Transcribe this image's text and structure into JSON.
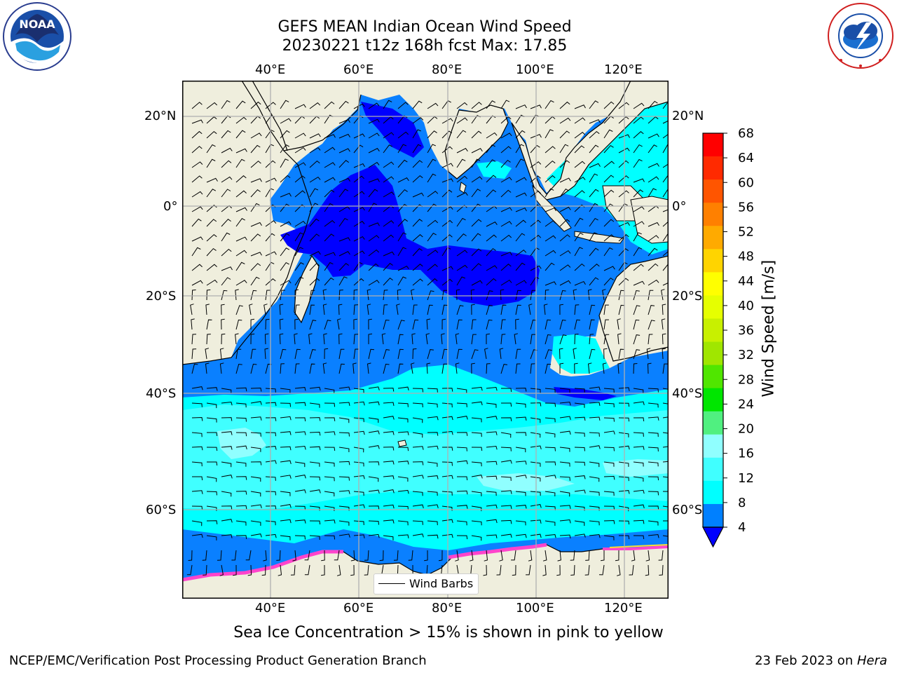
{
  "title_line1": "GEFS MEAN Indian Ocean Wind Speed",
  "title_line2": "20230221 t12z 168h fcst   Max: 17.85",
  "lon_ticks": [
    "40°E",
    "60°E",
    "80°E",
    "100°E",
    "120°E"
  ],
  "lat_ticks": [
    "20°N",
    "0°",
    "20°S",
    "40°S",
    "60°S"
  ],
  "colorbar": {
    "label": "Wind Speed [m/s]",
    "ticks": [
      "68",
      "64",
      "60",
      "56",
      "52",
      "48",
      "44",
      "40",
      "36",
      "32",
      "28",
      "24",
      "20",
      "16",
      "12",
      "8",
      "4"
    ],
    "colors": [
      "#ff0000",
      "#ff2a00",
      "#ff5500",
      "#ff8000",
      "#ffaa00",
      "#ffd400",
      "#ffff00",
      "#e6ff00",
      "#c8f000",
      "#a0e600",
      "#50e600",
      "#00e600",
      "#50f080",
      "#90ffff",
      "#40ffff",
      "#00ffff",
      "#0080ff"
    ],
    "under_color": "#0000ff"
  },
  "legend": {
    "label": "Wind Barbs"
  },
  "sea_ice_note": "Sea Ice Concentration > 15% is shown in pink to yellow",
  "footer_left": "NCEP/EMC/Verification Post Processing Product Generation Branch",
  "footer_right_date": "23 Feb 2023 on ",
  "footer_right_host": "Hera",
  "logos": {
    "left": "NOAA",
    "right_seal": "NATIONAL WEATHER SERVICE"
  }
}
